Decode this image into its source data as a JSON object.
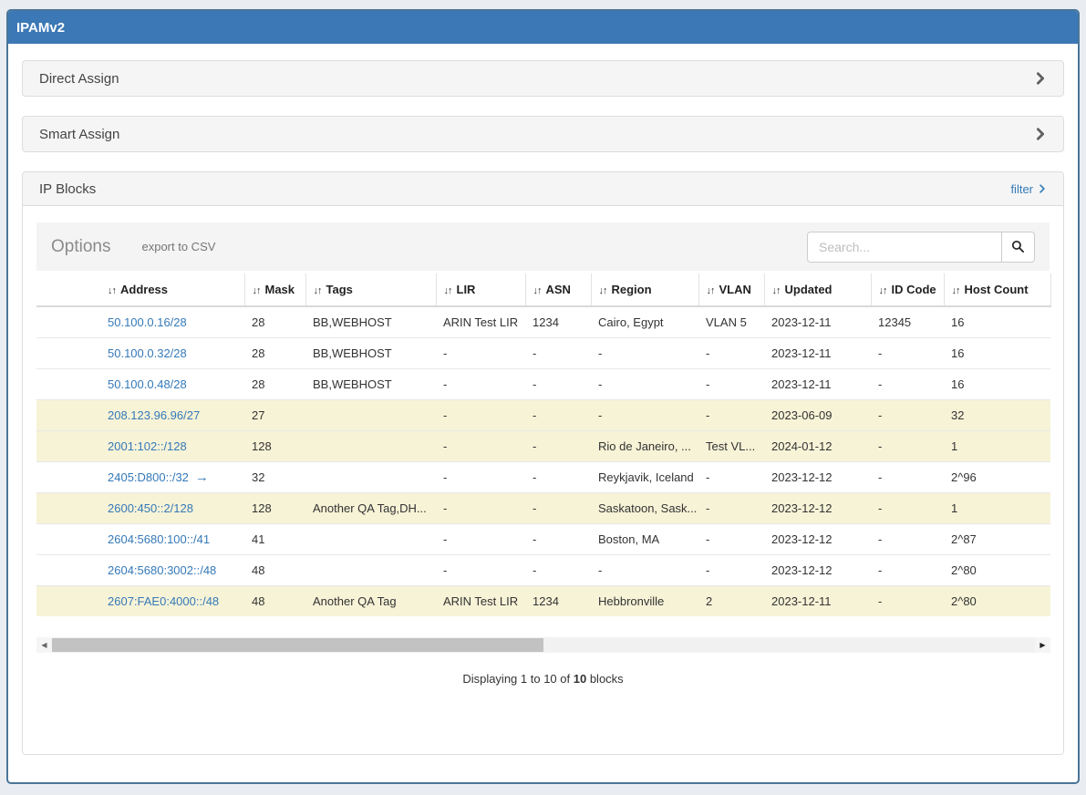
{
  "app": {
    "title": "IPAMv2"
  },
  "panels": {
    "direct_assign": {
      "label": "Direct Assign"
    },
    "smart_assign": {
      "label": "Smart Assign"
    },
    "ip_blocks": {
      "label": "IP Blocks",
      "filter_label": "filter"
    }
  },
  "toolbar": {
    "options_label": "Options",
    "export_label": "export to CSV",
    "search_placeholder": "Search..."
  },
  "icons": {
    "sort": "↓↑",
    "scroll_left": "◀",
    "scroll_right": "▶",
    "address_arrow": "→"
  },
  "table": {
    "columns": [
      "Address",
      "Mask",
      "Tags",
      "LIR",
      "ASN",
      "Region",
      "VLAN",
      "Updated",
      "ID Code",
      "Host Count"
    ],
    "rows": [
      {
        "address": "50.100.0.16/28",
        "arrow": false,
        "mask": "28",
        "tags": "BB,WEBHOST",
        "lir": "ARIN Test LIR",
        "asn": "1234",
        "region": "Cairo, Egypt",
        "vlan": "VLAN 5",
        "updated": "2023-12-11",
        "id_code": "12345",
        "host_count": "16",
        "highlight": false
      },
      {
        "address": "50.100.0.32/28",
        "arrow": false,
        "mask": "28",
        "tags": "BB,WEBHOST",
        "lir": "-",
        "asn": "-",
        "region": "-",
        "vlan": "-",
        "updated": "2023-12-11",
        "id_code": "-",
        "host_count": "16",
        "highlight": false
      },
      {
        "address": "50.100.0.48/28",
        "arrow": false,
        "mask": "28",
        "tags": "BB,WEBHOST",
        "lir": "-",
        "asn": "-",
        "region": "-",
        "vlan": "-",
        "updated": "2023-12-11",
        "id_code": "-",
        "host_count": "16",
        "highlight": false
      },
      {
        "address": "208.123.96.96/27",
        "arrow": false,
        "mask": "27",
        "tags": "",
        "lir": "-",
        "asn": "-",
        "region": "-",
        "vlan": "-",
        "updated": "2023-06-09",
        "id_code": "-",
        "host_count": "32",
        "highlight": true
      },
      {
        "address": "2001:102::/128",
        "arrow": false,
        "mask": "128",
        "tags": "",
        "lir": "-",
        "asn": "-",
        "region": "Rio de Janeiro, ...",
        "vlan": "Test VL...",
        "updated": "2024-01-12",
        "id_code": "-",
        "host_count": "1",
        "highlight": true
      },
      {
        "address": "2405:D800::/32",
        "arrow": true,
        "mask": "32",
        "tags": "",
        "lir": "-",
        "asn": "-",
        "region": "Reykjavik, Iceland",
        "vlan": "-",
        "updated": "2023-12-12",
        "id_code": "-",
        "host_count": "2^96",
        "highlight": false
      },
      {
        "address": "2600:450::2/128",
        "arrow": false,
        "mask": "128",
        "tags": "Another QA Tag,DH...",
        "lir": "-",
        "asn": "-",
        "region": "Saskatoon, Sask...",
        "vlan": "-",
        "updated": "2023-12-12",
        "id_code": "-",
        "host_count": "1",
        "highlight": true
      },
      {
        "address": "2604:5680:100::/41",
        "arrow": false,
        "mask": "41",
        "tags": "",
        "lir": "-",
        "asn": "-",
        "region": "Boston, MA",
        "vlan": "-",
        "updated": "2023-12-12",
        "id_code": "-",
        "host_count": "2^87",
        "highlight": false
      },
      {
        "address": "2604:5680:3002::/48",
        "arrow": false,
        "mask": "48",
        "tags": "",
        "lir": "-",
        "asn": "-",
        "region": "-",
        "vlan": "-",
        "updated": "2023-12-12",
        "id_code": "-",
        "host_count": "2^80",
        "highlight": false
      },
      {
        "address": "2607:FAE0:4000::/48",
        "arrow": false,
        "mask": "48",
        "tags": "Another QA Tag",
        "lir": "ARIN Test LIR",
        "asn": "1234",
        "region": "Hebbronville",
        "vlan": "2",
        "updated": "2023-12-11",
        "id_code": "-",
        "host_count": "2^80",
        "highlight": true
      }
    ]
  },
  "footer": {
    "summary_prefix": "Displaying 1 to 10 of",
    "summary_total": "10",
    "summary_suffix": "blocks"
  },
  "colors": {
    "header_bg": "#3b78b5",
    "container_border": "#4a7599",
    "link": "#337ab7",
    "highlight_row": "#f7f3d7",
    "panel_bg": "#f5f5f5",
    "page_bg": "#e9edf2"
  }
}
